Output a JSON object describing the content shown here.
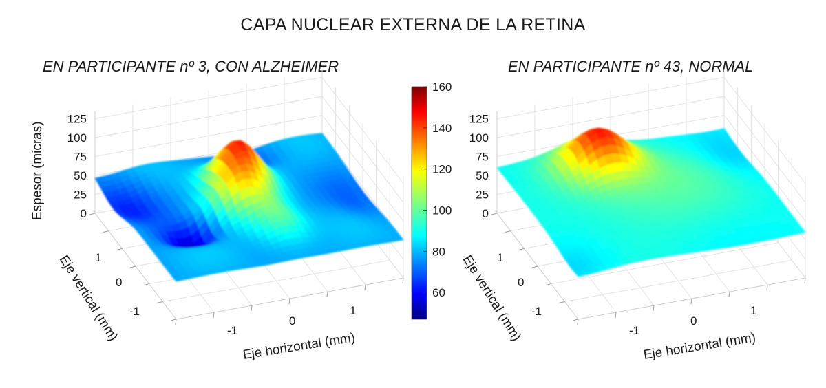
{
  "title": "CAPA NUCLEAR EXTERNA DE LA RETINA",
  "colorbar": {
    "colormap": "jet",
    "ticks": [
      "160",
      "140",
      "120",
      "100",
      "80",
      "60"
    ],
    "tick_values": [
      160,
      140,
      120,
      100,
      80,
      60
    ],
    "range": [
      47,
      160
    ]
  },
  "chart_data": [
    {
      "type": "surface3d",
      "subtitle": "EN PARTICIPANTE nº 3, CON ALZHEIMER",
      "zlabel": "Espesor (micras)",
      "ylabel": "Eje vertical (mm)",
      "xlabel": "Eje horizontal (mm)",
      "z_ticks": [
        "125",
        "100",
        "75",
        "50",
        "25",
        "0"
      ],
      "y_ticks": [
        "1",
        "0",
        "-1"
      ],
      "x_ticks": [
        "-1",
        "0",
        "1"
      ],
      "zlim": [
        0,
        125
      ],
      "xlim": [
        -1.5,
        1.5
      ],
      "ylim": [
        -1.5,
        1.5
      ],
      "grid": true,
      "peak_thickness": 140,
      "min_thickness": 55,
      "description": "irregular surface with thick curved ridge near center and thin depression at front-left"
    },
    {
      "type": "surface3d",
      "subtitle": "EN PARTICIPANTE nº 43, NORMAL",
      "zlabel": "",
      "ylabel": "Eje vertical (mm)",
      "xlabel": "Eje horizontal (mm)",
      "z_ticks": [
        "125",
        "100",
        "75",
        "50",
        "25",
        "0"
      ],
      "y_ticks": [
        "1",
        "0",
        "-1"
      ],
      "x_ticks": [
        "-1",
        "0",
        "1"
      ],
      "zlim": [
        0,
        125
      ],
      "xlim": [
        -1.5,
        1.5
      ],
      "ylim": [
        -1.5,
        1.5
      ],
      "grid": true,
      "peak_thickness": 140,
      "min_thickness": 80,
      "description": "smooth dome surface with single central peak"
    }
  ]
}
